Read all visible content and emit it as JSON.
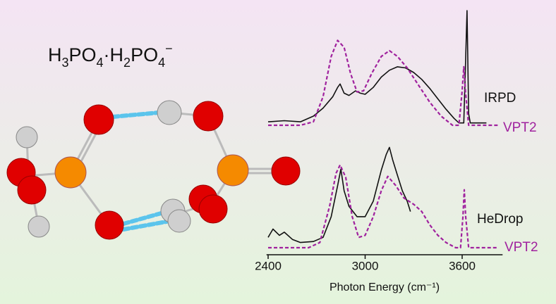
{
  "title": [
    "H",
    "3",
    "PO",
    "4",
    "·H",
    "2",
    "PO",
    "4",
    "−"
  ],
  "chart_data": [
    {
      "type": "line",
      "xlim": [
        2390,
        3850
      ],
      "ylim": [
        0,
        1
      ],
      "series": [
        {
          "name": "IRPD",
          "color": "#111111",
          "style": "solid",
          "x": [
            2400,
            2500,
            2600,
            2680,
            2740,
            2800,
            2830,
            2845,
            2870,
            2900,
            2940,
            2970,
            3000,
            3050,
            3100,
            3150,
            3200,
            3250,
            3300,
            3350,
            3400,
            3450,
            3500,
            3550,
            3580,
            3610,
            3620,
            3630,
            3640,
            3650,
            3750
          ],
          "values": [
            0.03,
            0.04,
            0.03,
            0.08,
            0.15,
            0.25,
            0.33,
            0.36,
            0.28,
            0.26,
            0.3,
            0.28,
            0.27,
            0.33,
            0.42,
            0.48,
            0.51,
            0.5,
            0.46,
            0.4,
            0.32,
            0.23,
            0.14,
            0.06,
            0.02,
            0.02,
            0.5,
            1.0,
            0.1,
            0.02,
            0.02
          ]
        },
        {
          "name": "VPT2",
          "color": "#a0229e",
          "style": "dashed",
          "x": [
            2400,
            2600,
            2680,
            2740,
            2790,
            2830,
            2870,
            2910,
            2950,
            2990,
            3040,
            3100,
            3150,
            3200,
            3260,
            3330,
            3400,
            3470,
            3540,
            3580,
            3600,
            3610,
            3620,
            3640,
            3820
          ],
          "values": [
            0,
            0,
            0.03,
            0.25,
            0.6,
            0.74,
            0.68,
            0.45,
            0.29,
            0.3,
            0.45,
            0.6,
            0.65,
            0.6,
            0.5,
            0.35,
            0.2,
            0.08,
            0,
            0,
            0.3,
            0.51,
            0.3,
            0,
            0
          ]
        }
      ]
    },
    {
      "type": "line",
      "xlim": [
        2390,
        3850
      ],
      "ylim": [
        0,
        1
      ],
      "xticks": [
        2400,
        3000,
        3600
      ],
      "xlabel": "Photon Energy (cm⁻¹)",
      "series": [
        {
          "name": "HeDrop",
          "color": "#111111",
          "style": "solid",
          "x": [
            2400,
            2430,
            2470,
            2500,
            2550,
            2600,
            2680,
            2740,
            2790,
            2830,
            2850,
            2870,
            2900,
            2950,
            3000,
            3050,
            3100,
            3130,
            3150,
            3170,
            3200,
            3230,
            3260,
            3280
          ],
          "values": [
            0.1,
            0.18,
            0.12,
            0.15,
            0.08,
            0.05,
            0.06,
            0.1,
            0.3,
            0.6,
            0.76,
            0.55,
            0.4,
            0.3,
            0.3,
            0.45,
            0.75,
            0.9,
            0.97,
            0.85,
            0.7,
            0.55,
            0.45,
            0.35
          ]
        },
        {
          "name": "VPT2",
          "color": "#a0229e",
          "style": "dashed",
          "x": [
            2400,
            2650,
            2720,
            2780,
            2820,
            2845,
            2880,
            2920,
            2960,
            3000,
            3050,
            3100,
            3140,
            3190,
            3240,
            3300,
            3350,
            3400,
            3450,
            3500,
            3560,
            3590,
            3605,
            3613,
            3622,
            3640,
            3820
          ],
          "values": [
            0,
            0,
            0.05,
            0.4,
            0.72,
            0.8,
            0.68,
            0.3,
            0.1,
            0.12,
            0.3,
            0.55,
            0.69,
            0.6,
            0.48,
            0.42,
            0.35,
            0.22,
            0.12,
            0.05,
            0,
            0,
            0.3,
            0.56,
            0.3,
            0,
            0
          ]
        }
      ]
    }
  ]
}
